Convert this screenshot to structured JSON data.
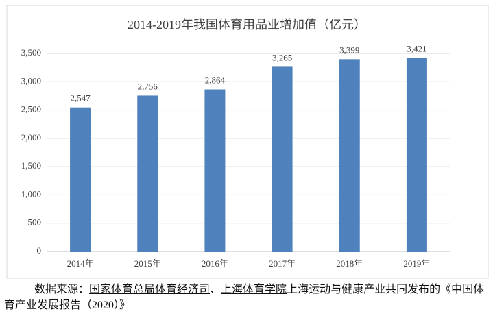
{
  "chart_data": {
    "type": "bar",
    "title": "2014-2019年我国体育用品业增加值（亿元）",
    "categories": [
      "2014年",
      "2015年",
      "2016年",
      "2017年",
      "2018年",
      "2019年"
    ],
    "values": [
      2547,
      2756,
      2864,
      3265,
      3399,
      3421
    ],
    "value_labels": [
      "2,547",
      "2,756",
      "2,864",
      "3,265",
      "3,399",
      "3,421"
    ],
    "color": "#4f81bd",
    "ylim": [
      0,
      3500
    ],
    "yticks": [
      0,
      500,
      {
        "value": 1000,
        "label": "1,000"
      },
      {
        "value": 1500,
        "label": "1,500"
      },
      {
        "value": 2000,
        "label": "2,000"
      },
      {
        "value": 2500,
        "label": "2,500"
      },
      {
        "value": 3000,
        "label": "3,000"
      },
      {
        "value": 3500,
        "label": "3,500"
      }
    ],
    "grid": true
  },
  "source": {
    "parts": [
      {
        "text": "数据来源：",
        "underline": false
      },
      {
        "text": "国家体育总局体育经济司",
        "underline": true
      },
      {
        "text": "、",
        "underline": false
      },
      {
        "text": "上海体育学院",
        "underline": true
      },
      {
        "text": "上海运动与健康产业共同发布的《中国体育产业发展报告（2020）》",
        "underline": false
      }
    ]
  }
}
